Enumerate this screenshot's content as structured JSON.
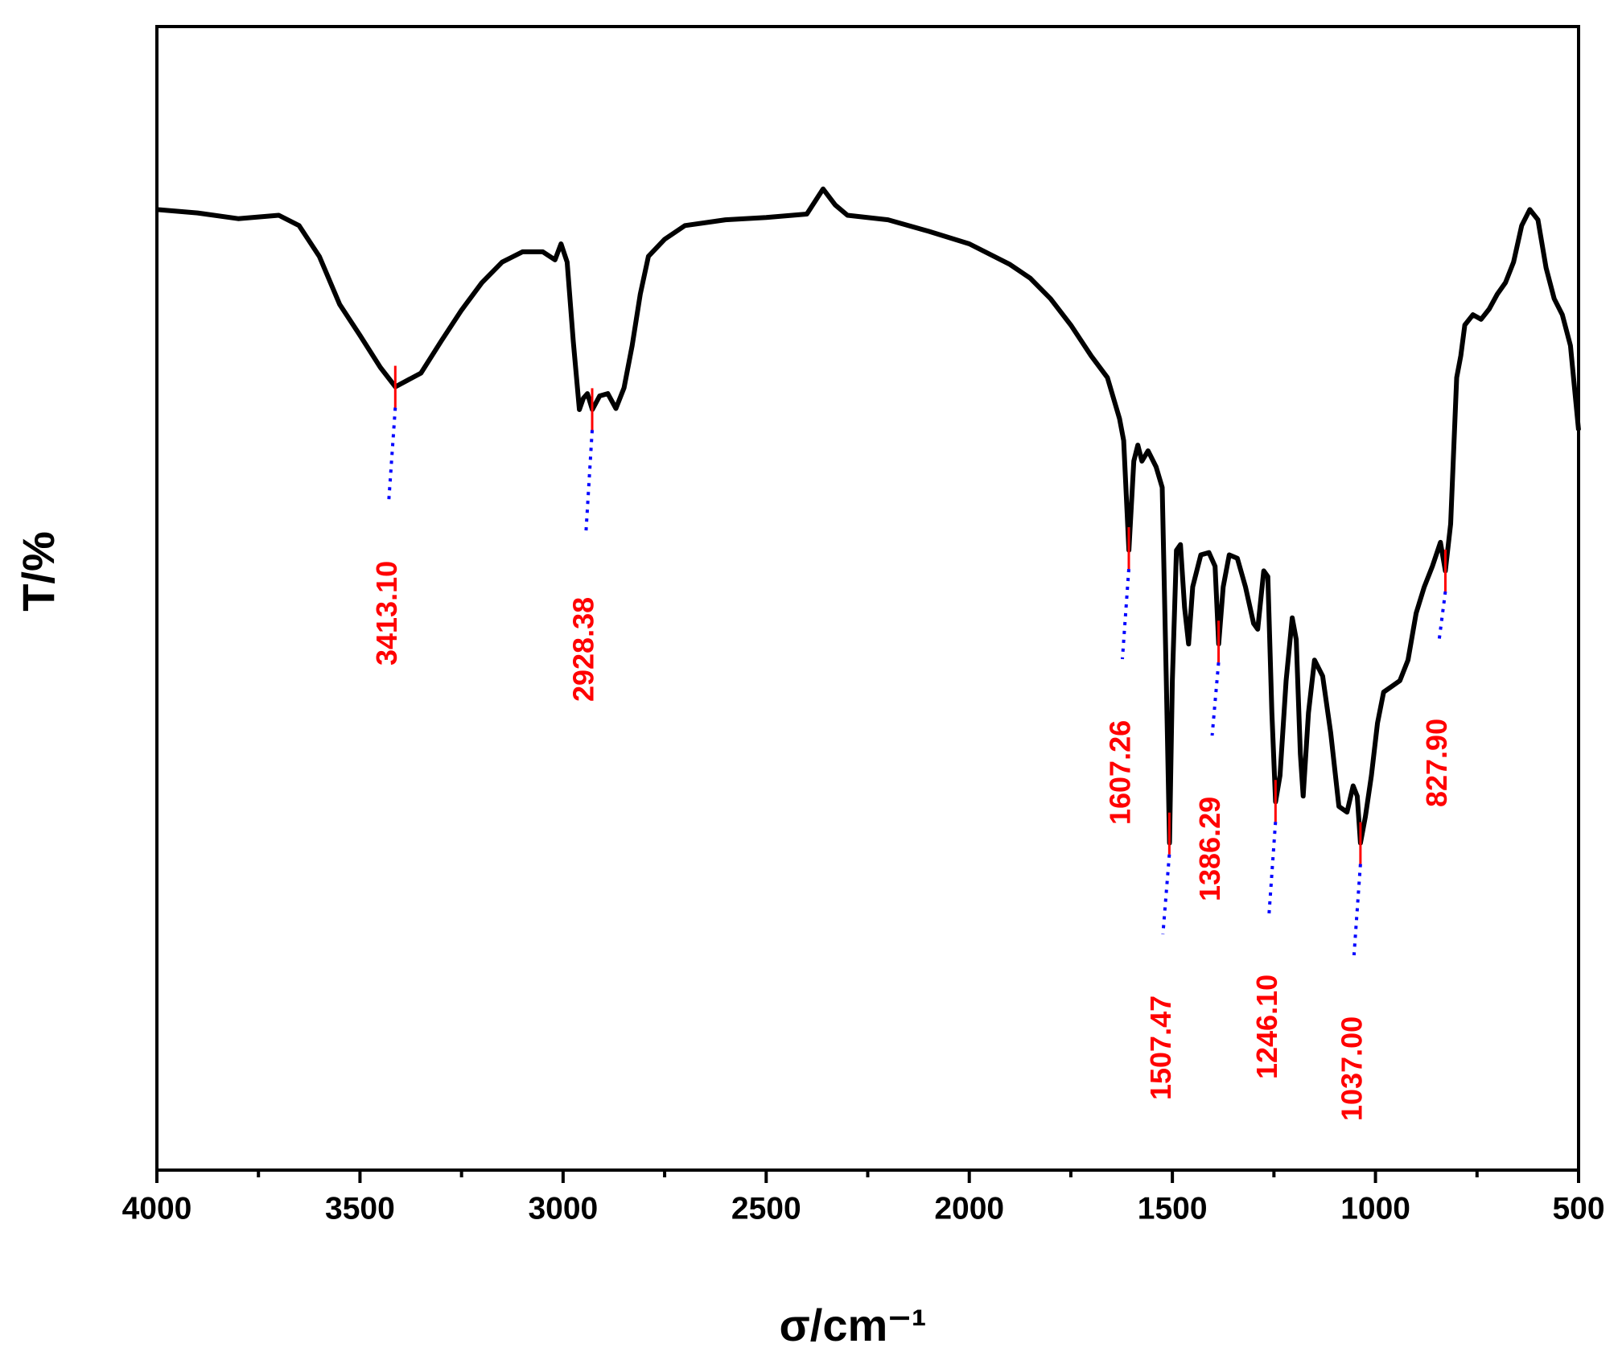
{
  "chart_data": {
    "type": "line",
    "xlabel": "σ/cm⁻¹",
    "ylabel": "T/%",
    "x": [
      4000,
      3900,
      3800,
      3700,
      3650,
      3600,
      3550,
      3500,
      3450,
      3413,
      3350,
      3300,
      3250,
      3200,
      3150,
      3100,
      3050,
      3020,
      3005,
      2990,
      2975,
      2960,
      2950,
      2940,
      2928,
      2910,
      2890,
      2870,
      2850,
      2830,
      2810,
      2790,
      2750,
      2700,
      2600,
      2500,
      2400,
      2360,
      2330,
      2300,
      2200,
      2100,
      2000,
      1900,
      1850,
      1800,
      1750,
      1700,
      1660,
      1630,
      1620,
      1607,
      1595,
      1585,
      1575,
      1560,
      1540,
      1525,
      1515,
      1507,
      1500,
      1490,
      1480,
      1470,
      1460,
      1450,
      1430,
      1410,
      1395,
      1386,
      1375,
      1360,
      1340,
      1320,
      1300,
      1290,
      1275,
      1265,
      1255,
      1246,
      1235,
      1220,
      1205,
      1195,
      1185,
      1178,
      1165,
      1150,
      1130,
      1110,
      1090,
      1070,
      1055,
      1045,
      1037,
      1025,
      1010,
      995,
      980,
      960,
      940,
      920,
      900,
      880,
      860,
      840,
      828,
      815,
      800,
      790,
      780,
      760,
      740,
      720,
      700,
      680,
      660,
      640,
      620,
      600,
      580,
      560,
      540,
      520,
      500
    ],
    "values": [
      84.0,
      83.7,
      83.2,
      83.5,
      82.6,
      79.9,
      75.7,
      73.0,
      70.2,
      68.5,
      69.7,
      72.5,
      75.2,
      77.6,
      79.4,
      80.3,
      80.3,
      79.6,
      81.0,
      79.4,
      72.5,
      66.5,
      67.5,
      67.9,
      66.5,
      67.7,
      67.9,
      66.6,
      68.4,
      72.1,
      76.6,
      79.9,
      81.4,
      82.6,
      83.1,
      83.3,
      83.6,
      85.8,
      84.4,
      83.5,
      83.1,
      82.1,
      81.0,
      79.2,
      78.0,
      76.2,
      73.9,
      71.2,
      69.3,
      65.7,
      63.8,
      54.2,
      62.0,
      63.4,
      62.0,
      62.9,
      61.5,
      59.7,
      42.8,
      28.6,
      42.8,
      54.2,
      54.7,
      49.2,
      46.0,
      51.0,
      53.8,
      54.0,
      52.8,
      46.0,
      51.0,
      53.8,
      53.5,
      51.0,
      47.8,
      47.3,
      52.4,
      51.9,
      40.0,
      32.2,
      34.5,
      42.8,
      48.3,
      46.4,
      36.4,
      32.7,
      40.0,
      44.6,
      43.2,
      38.2,
      31.8,
      31.3,
      33.6,
      32.7,
      28.6,
      30.9,
      34.5,
      39.1,
      41.8,
      42.3,
      42.8,
      44.6,
      48.7,
      51.0,
      52.8,
      54.9,
      52.4,
      56.5,
      69.3,
      71.2,
      73.9,
      74.8,
      74.4,
      75.3,
      76.6,
      77.6,
      79.4,
      82.6,
      84.0,
      83.1,
      78.9,
      76.2,
      74.8,
      72.1,
      64.7
    ],
    "color": "#000000",
    "xlim": [
      4000,
      500
    ],
    "ylim": [
      0,
      100
    ],
    "xticks": [
      4000,
      3500,
      3000,
      2500,
      2000,
      1500,
      1000,
      500
    ],
    "xminor_ticks": [
      3750,
      3250,
      2750,
      2250,
      1750,
      1250,
      750
    ],
    "annotations": [
      {
        "value": 3413.1,
        "label": "3413.10"
      },
      {
        "value": 2928.38,
        "label": "2928.38"
      },
      {
        "value": 1607.26,
        "label": "1607.26"
      },
      {
        "value": 1507.47,
        "label": "1507.47"
      },
      {
        "value": 1386.29,
        "label": "1386.29"
      },
      {
        "value": 1246.1,
        "label": "1246.10"
      },
      {
        "value": 1037.0,
        "label": "1037.00"
      },
      {
        "value": 827.9,
        "label": "827.90"
      }
    ],
    "annotation_color": "#ff0000",
    "leader_color": "#0000ff"
  }
}
